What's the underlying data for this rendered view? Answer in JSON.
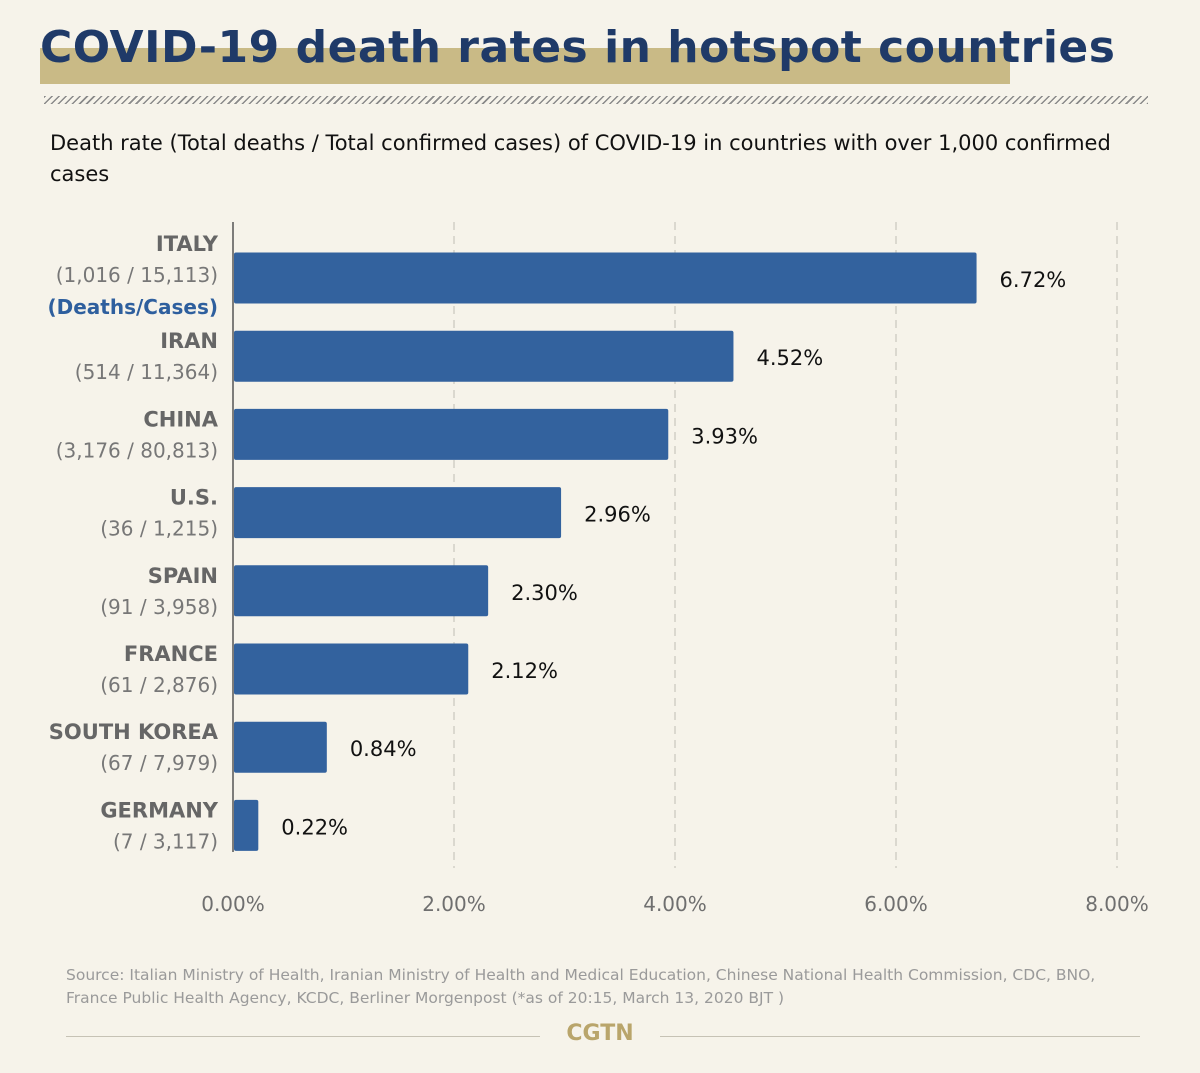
{
  "header": {
    "title": "COVID-19 death rates in hotspot countries",
    "subtitle": "Death rate (Total deaths / Total confirmed cases) of COVID-19 in countries with over 1,000 confirmed cases"
  },
  "chart_data": {
    "type": "bar",
    "orientation": "horizontal",
    "categories": [
      "ITALY",
      "IRAN",
      "CHINA",
      "U.S.",
      "SPAIN",
      "FRANCE",
      "SOUTH KOREA",
      "GERMANY"
    ],
    "category_counts": [
      "(1,016 / 15,113)",
      "(514 / 11,364)",
      "(3,176 / 80,813)",
      "(36 / 1,215)",
      "(91 / 3,958)",
      "(61 / 2,876)",
      "(67 / 7,979)",
      "(7 / 3,117)"
    ],
    "count_legend": "(Deaths/Cases)",
    "values": [
      6.72,
      4.52,
      3.93,
      2.96,
      2.3,
      2.12,
      0.84,
      0.22
    ],
    "value_labels": [
      "6.72%",
      "4.52%",
      "3.93%",
      "2.96%",
      "2.30%",
      "2.12%",
      "0.84%",
      "0.22%"
    ],
    "xlim": [
      0,
      8
    ],
    "xticks": [
      0,
      2,
      4,
      6,
      8
    ],
    "xtick_labels": [
      "0.00%",
      "2.00%",
      "4.00%",
      "6.00%",
      "8.00%"
    ],
    "grid": "vertical dashed",
    "xlabel": "",
    "ylabel": ""
  },
  "footer": {
    "source": "Source: Italian Ministry of Health, Iranian Ministry of Health and Medical Education, Chinese National Health Commission, CDC, BNO, France Public Health Agency, KCDC, Berliner Morgenpost (*as of 20:15, March 13, 2020 BJT )",
    "brand": "CGTN"
  },
  "colors": {
    "background": "#f6f3ea",
    "title": "#1f3a68",
    "title_highlight": "#c9ba86",
    "bar": "#33629e",
    "label_gray": "#666666",
    "legend_blue": "#2e5f9e",
    "brand": "#b9a56b"
  }
}
